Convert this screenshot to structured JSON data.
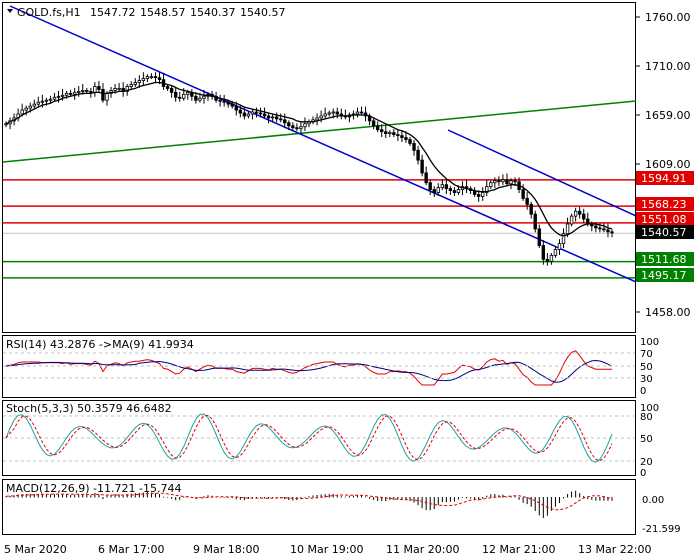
{
  "header": {
    "symbol": "GOLD.fs,H1",
    "open": "1547.72",
    "high": "1548.57",
    "low": "1540.37",
    "close": "1540.57"
  },
  "price_axis": {
    "ticks": [
      "1760.00",
      "1710.00",
      "1659.00",
      "1609.00",
      "1458.00"
    ],
    "tick_values": [
      1760,
      1710,
      1659,
      1609,
      1458
    ],
    "current_price": "1540.57"
  },
  "levels": [
    {
      "label": "1594.91",
      "value": 1594.91,
      "color": "#e00000"
    },
    {
      "label": "1568.23",
      "value": 1568.23,
      "color": "#e00000"
    },
    {
      "label": "1551.08",
      "value": 1551.08,
      "color": "#e00000"
    },
    {
      "label": "1511.68",
      "value": 1511.68,
      "color": "#008000"
    },
    {
      "label": "1495.17",
      "value": 1495.17,
      "color": "#008000"
    }
  ],
  "rsi": {
    "label": "RSI(14) 43.2876   ->MA(9) 41.9934",
    "ticks": [
      "100",
      "70",
      "50",
      "30",
      "0"
    ]
  },
  "stoch": {
    "label": "Stoch(5,3,3) 50.3579 46.6482",
    "ticks": [
      "100",
      "80",
      "50",
      "20",
      "0"
    ]
  },
  "macd": {
    "label": "MACD(12,26,9) -11.721 -15.744",
    "ticks": [
      "0.00",
      "-21.599"
    ]
  },
  "time_axis": [
    "5 Mar 2020",
    "6 Mar 17:00",
    "9 Mar 18:00",
    "10 Mar 19:00",
    "11 Mar 20:00",
    "12 Mar 21:00",
    "13 Mar 22:00"
  ],
  "chart_data": {
    "type": "candlestick",
    "title": "GOLD.fs,H1",
    "ylim": [
      1440,
      1775
    ],
    "close_series": [
      1652,
      1655,
      1658,
      1662,
      1666,
      1668,
      1670,
      1672,
      1674,
      1675,
      1676,
      1677,
      1679,
      1680,
      1681,
      1683,
      1682,
      1684,
      1685,
      1686,
      1685,
      1684,
      1690,
      1687,
      1676,
      1683,
      1686,
      1688,
      1688,
      1685,
      1690,
      1692,
      1694,
      1696,
      1698,
      1700,
      1700,
      1699,
      1697,
      1690,
      1688,
      1684,
      1679,
      1678,
      1682,
      1684,
      1680,
      1676,
      1678,
      1680,
      1682,
      1680,
      1676,
      1675,
      1674,
      1672,
      1670,
      1666,
      1663,
      1660,
      1662,
      1664,
      1663,
      1662,
      1660,
      1658,
      1659,
      1657,
      1656,
      1653,
      1650,
      1648,
      1647,
      1649,
      1652,
      1654,
      1656,
      1658,
      1660,
      1662,
      1663,
      1664,
      1662,
      1660,
      1659,
      1661,
      1662,
      1664,
      1663,
      1660,
      1655,
      1650,
      1646,
      1644,
      1642,
      1643,
      1641,
      1640,
      1638,
      1636,
      1632,
      1625,
      1615,
      1602,
      1592,
      1585,
      1582,
      1587,
      1590,
      1586,
      1584,
      1582,
      1585,
      1588,
      1586,
      1584,
      1580,
      1578,
      1582,
      1588,
      1592,
      1594,
      1593,
      1595,
      1591,
      1594,
      1593,
      1585,
      1576,
      1570,
      1560,
      1545,
      1528,
      1514,
      1512,
      1518,
      1524,
      1530,
      1540,
      1550,
      1558,
      1563,
      1560,
      1555,
      1550,
      1548,
      1546,
      1545,
      1544,
      1542,
      1541
    ],
    "ma_series": [
      1652,
      1654,
      1656,
      1658,
      1661,
      1663,
      1665,
      1667,
      1669,
      1671,
      1672,
      1673,
      1675,
      1676,
      1678,
      1679,
      1680,
      1681,
      1682,
      1683,
      1683,
      1683,
      1684,
      1684,
      1683,
      1683,
      1684,
      1684,
      1685,
      1685,
      1686,
      1687,
      1688,
      1690,
      1691,
      1692,
      1693,
      1694,
      1694,
      1693,
      1692,
      1691,
      1689,
      1687,
      1686,
      1685,
      1684,
      1683,
      1682,
      1681,
      1681,
      1680,
      1679,
      1678,
      1677,
      1676,
      1674,
      1673,
      1671,
      1669,
      1668,
      1667,
      1666,
      1665,
      1664,
      1663,
      1662,
      1661,
      1660,
      1659,
      1658,
      1657,
      1655,
      1654,
      1654,
      1654,
      1654,
      1655,
      1656,
      1657,
      1658,
      1659,
      1660,
      1660,
      1660,
      1660,
      1661,
      1661,
      1661,
      1661,
      1660,
      1658,
      1656,
      1654,
      1652,
      1650,
      1648,
      1646,
      1645,
      1643,
      1641,
      1638,
      1634,
      1628,
      1622,
      1615,
      1609,
      1604,
      1600,
      1596,
      1593,
      1590,
      1588,
      1587,
      1586,
      1585,
      1584,
      1583,
      1583,
      1583,
      1584,
      1585,
      1587,
      1588,
      1589,
      1590,
      1590,
      1589,
      1587,
      1584,
      1580,
      1575,
      1568,
      1560,
      1552,
      1546,
      1542,
      1539,
      1538,
      1539,
      1541,
      1544,
      1547,
      1549,
      1550,
      1550,
      1550,
      1549,
      1548,
      1546,
      1545
    ]
  }
}
